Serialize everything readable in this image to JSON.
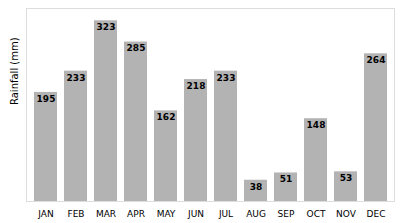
{
  "chart_data": {
    "type": "bar",
    "categories": [
      "JAN",
      "FEB",
      "MAR",
      "APR",
      "MAY",
      "JUN",
      "JUL",
      "AUG",
      "SEP",
      "OCT",
      "NOV",
      "DEC"
    ],
    "values": [
      195,
      233,
      323,
      285,
      162,
      218,
      233,
      38,
      51,
      148,
      53,
      264
    ],
    "color": "#b3b3b3",
    "ylabel": "Rainfall (mm)",
    "ylim": [
      0,
      345
    ],
    "grid": false,
    "data_labels": true,
    "tick_labels": "x"
  }
}
